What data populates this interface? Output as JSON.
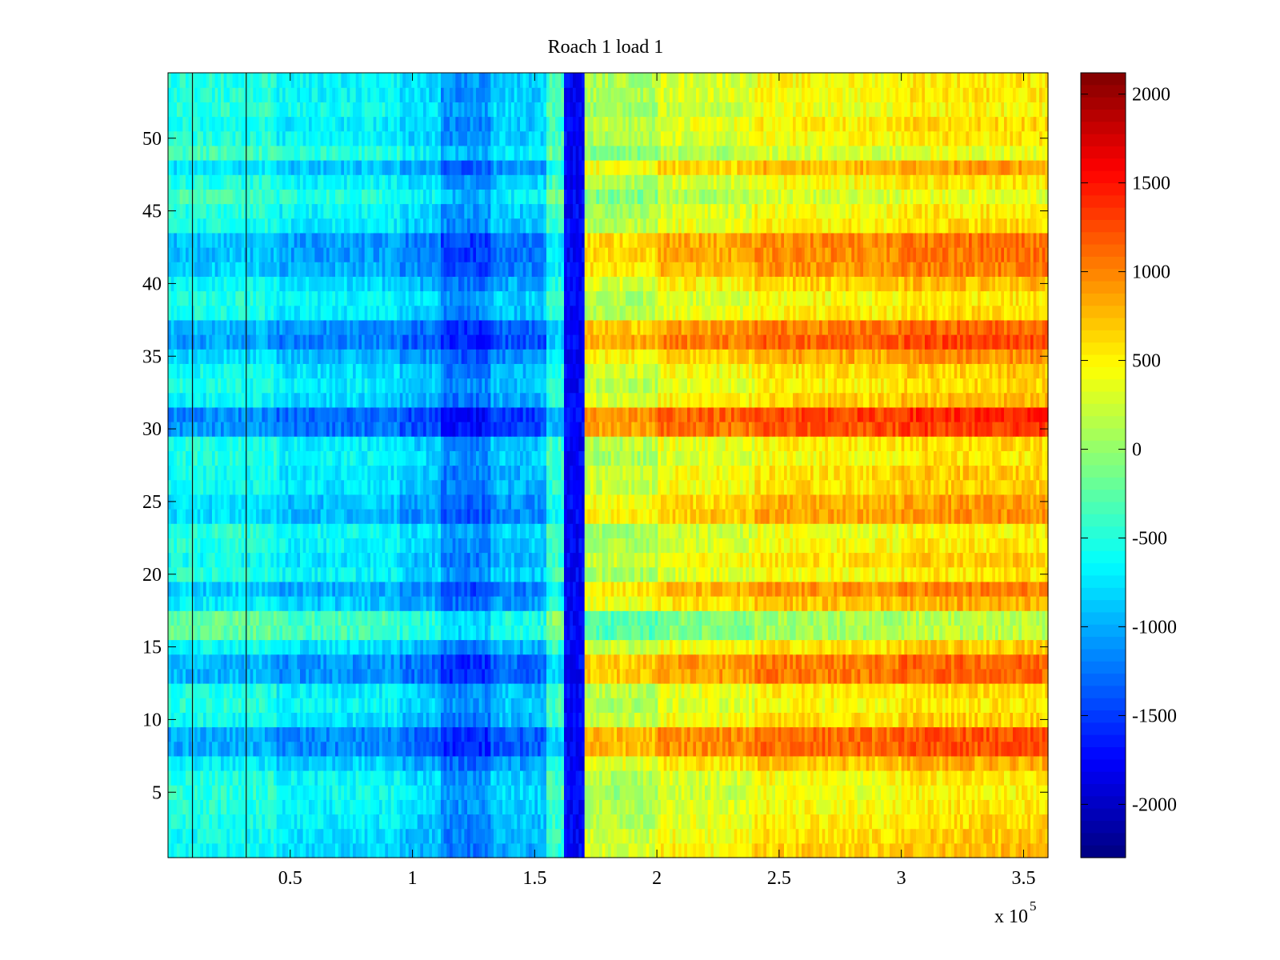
{
  "chart_data": {
    "type": "heatmap",
    "title": "Roach 1 load 1",
    "xlabel": "",
    "ylabel": "",
    "x_range": [
      0,
      360000
    ],
    "y_range": [
      0.5,
      54.5
    ],
    "rows": 54,
    "x_multiplier_label": "x 10",
    "x_multiplier_exponent": "5",
    "x_ticks": [
      {
        "value": 0.5,
        "label": "0.5"
      },
      {
        "value": 1,
        "label": "1"
      },
      {
        "value": 1.5,
        "label": "1.5"
      },
      {
        "value": 2,
        "label": "2"
      },
      {
        "value": 2.5,
        "label": "2.5"
      },
      {
        "value": 3,
        "label": "3"
      },
      {
        "value": 3.5,
        "label": "3.5"
      }
    ],
    "x_tick_scale": 100000,
    "y_ticks": [
      {
        "value": 5,
        "label": "5"
      },
      {
        "value": 10,
        "label": "10"
      },
      {
        "value": 15,
        "label": "15"
      },
      {
        "value": 20,
        "label": "20"
      },
      {
        "value": 25,
        "label": "25"
      },
      {
        "value": 30,
        "label": "30"
      },
      {
        "value": 35,
        "label": "35"
      },
      {
        "value": 40,
        "label": "40"
      },
      {
        "value": 45,
        "label": "45"
      },
      {
        "value": 50,
        "label": "50"
      }
    ],
    "colorbar": {
      "colormap": "jet",
      "range": [
        -2300,
        2120
      ],
      "ticks": [
        {
          "value": 2000,
          "label": "2000"
        },
        {
          "value": 1500,
          "label": "1500"
        },
        {
          "value": 1000,
          "label": "1000"
        },
        {
          "value": 500,
          "label": "500"
        },
        {
          "value": 0,
          "label": "0"
        },
        {
          "value": -500,
          "label": "-500"
        },
        {
          "value": -1000,
          "label": "-1000"
        },
        {
          "value": -1500,
          "label": "-1500"
        },
        {
          "value": -2000,
          "label": "-2000"
        }
      ]
    },
    "column_segments": [
      {
        "x_start": 0,
        "x_end": 45000,
        "base_value": -500
      },
      {
        "x_start": 45000,
        "x_end": 95000,
        "base_value": -650
      },
      {
        "x_start": 95000,
        "x_end": 112000,
        "base_value": -800
      },
      {
        "x_start": 112000,
        "x_end": 132000,
        "base_value": -1100
      },
      {
        "x_start": 132000,
        "x_end": 155000,
        "base_value": -850
      },
      {
        "x_start": 155000,
        "x_end": 162000,
        "base_value": -350
      },
      {
        "x_start": 162000,
        "x_end": 171000,
        "base_value": -1750
      },
      {
        "x_start": 171000,
        "x_end": 200000,
        "base_value": 100
      },
      {
        "x_start": 200000,
        "x_end": 240000,
        "base_value": 300
      },
      {
        "x_start": 240000,
        "x_end": 300000,
        "base_value": 450
      },
      {
        "x_start": 300000,
        "x_end": 360000,
        "base_value": 550
      }
    ],
    "row_profile": [
      -150,
      -100,
      -50,
      0,
      50,
      0,
      -200,
      -500,
      -500,
      -100,
      0,
      -50,
      -450,
      -450,
      -100,
      300,
      300,
      -200,
      -350,
      0,
      -100,
      0,
      50,
      -300,
      -250,
      -100,
      -100,
      0,
      -50,
      -600,
      -650,
      -150,
      -50,
      -100,
      -300,
      -550,
      -450,
      -50,
      0,
      -150,
      -350,
      -400,
      -400,
      -50,
      0,
      150,
      0,
      -250,
      150,
      0,
      -50,
      50,
      0,
      0
    ],
    "contrast_left": 1.0,
    "contrast_right": 1.3,
    "black_vertical_lines_x": [
      10000,
      32000
    ]
  }
}
